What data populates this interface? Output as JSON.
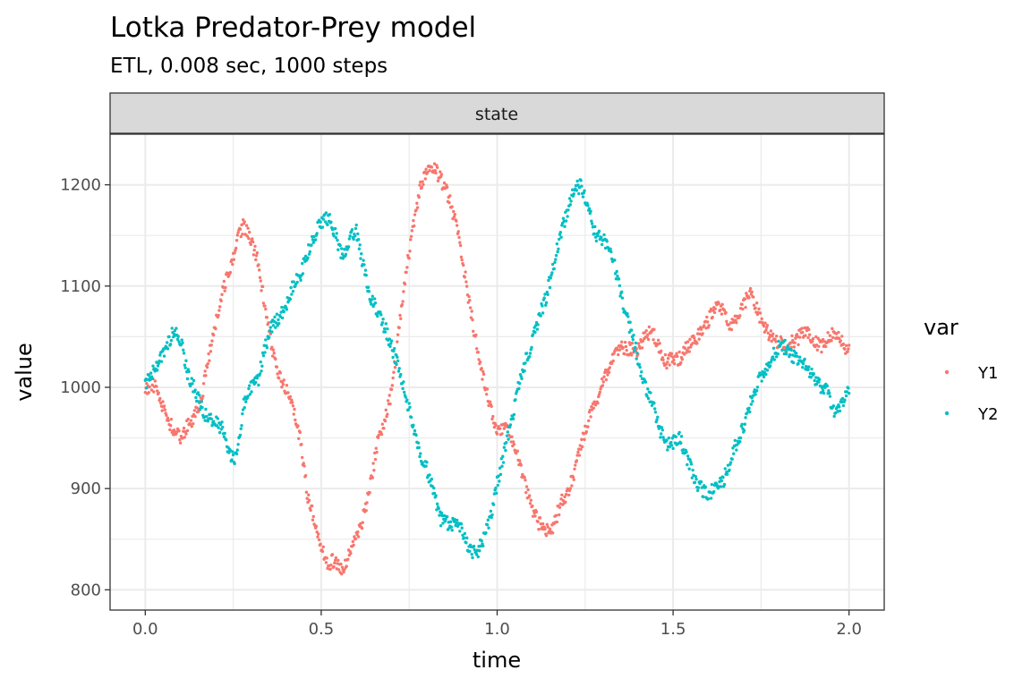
{
  "chart_data": {
    "type": "scatter",
    "title": "Lotka Predator-Prey model",
    "subtitle": "ETL, 0.008 sec, 1000 steps",
    "facet_label": "state",
    "xlabel": "time",
    "ylabel": "value",
    "xlim": [
      -0.1,
      2.1
    ],
    "ylim": [
      780,
      1250
    ],
    "x_ticks": [
      0.0,
      0.5,
      1.0,
      1.5,
      2.0
    ],
    "x_tick_labels": [
      "0.0",
      "0.5",
      "1.0",
      "1.5",
      "2.0"
    ],
    "y_ticks": [
      800,
      900,
      1000,
      1100,
      1200
    ],
    "y_tick_labels": [
      "800",
      "900",
      "1000",
      "1100",
      "1200"
    ],
    "grid": true,
    "legend": {
      "title": "var",
      "position": "right"
    },
    "colors": {
      "Y1": "#F8766D",
      "Y2": "#00BFC4"
    },
    "x_step": 0.02,
    "series": [
      {
        "name": "Y1",
        "x_start": 0.0,
        "values": [
          995,
          1005,
          992,
          970,
          958,
          950,
          962,
          972,
          990,
          1030,
          1062,
          1095,
          1115,
          1145,
          1160,
          1145,
          1125,
          1080,
          1040,
          1010,
          1000,
          980,
          950,
          895,
          870,
          845,
          825,
          830,
          818,
          835,
          850,
          872,
          905,
          945,
          965,
          995,
          1055,
          1110,
          1155,
          1195,
          1215,
          1218,
          1205,
          1190,
          1165,
          1130,
          1085,
          1045,
          1010,
          980,
          958,
          962,
          952,
          930,
          905,
          880,
          865,
          858,
          862,
          885,
          895,
          915,
          945,
          968,
          985,
          1005,
          1020,
          1035,
          1040,
          1038,
          1035,
          1050,
          1055,
          1040,
          1025,
          1030,
          1028,
          1040,
          1045,
          1055,
          1065,
          1080,
          1075,
          1060,
          1070,
          1080,
          1095,
          1075,
          1060,
          1050,
          1045,
          1040,
          1045,
          1050,
          1055,
          1045,
          1040,
          1050,
          1055,
          1045,
          1035
        ]
      },
      {
        "name": "Y2",
        "x_start": 0.0,
        "values": [
          1000,
          1015,
          1025,
          1040,
          1055,
          1048,
          1015,
          998,
          980,
          968,
          965,
          958,
          935,
          930,
          985,
          1000,
          1005,
          1040,
          1060,
          1068,
          1080,
          1100,
          1110,
          1130,
          1150,
          1162,
          1168,
          1150,
          1130,
          1145,
          1155,
          1120,
          1090,
          1075,
          1060,
          1040,
          1020,
          990,
          965,
          935,
          920,
          895,
          870,
          865,
          866,
          860,
          840,
          835,
          848,
          870,
          905,
          935,
          965,
          1000,
          1025,
          1045,
          1070,
          1090,
          1120,
          1150,
          1175,
          1195,
          1200,
          1175,
          1150,
          1145,
          1140,
          1110,
          1080,
          1055,
          1030,
          1000,
          985,
          960,
          945,
          945,
          950,
          930,
          910,
          900,
          895,
          900,
          905,
          925,
          945,
          960,
          985,
          1005,
          1015,
          1030,
          1040,
          1040,
          1030,
          1025,
          1020,
          1010,
          1000,
          995,
          975,
          985,
          1000
        ]
      }
    ]
  }
}
